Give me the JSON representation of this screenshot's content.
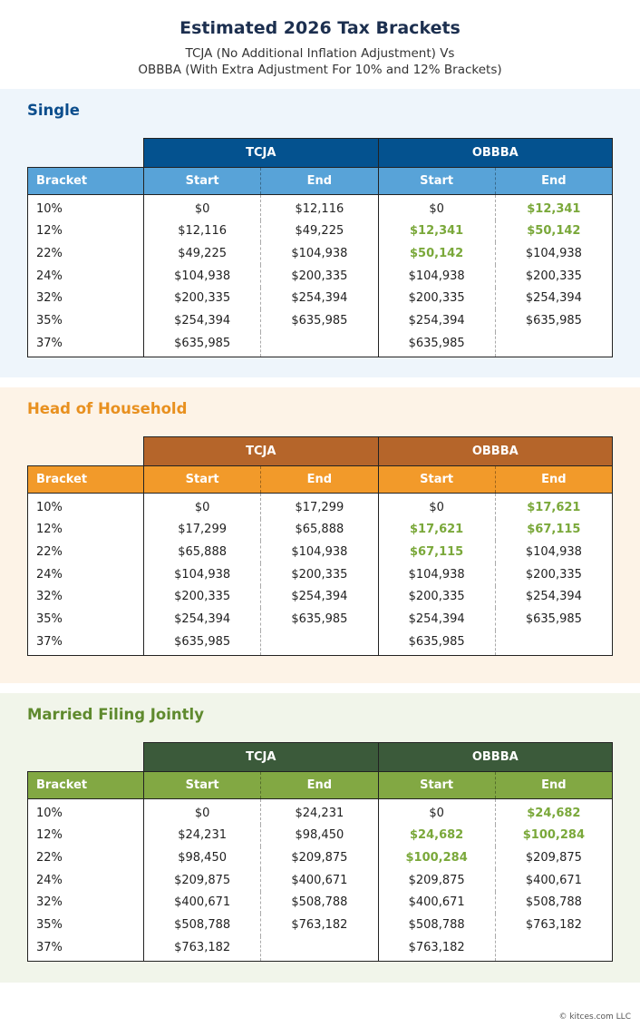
{
  "title": "Estimated 2026 Tax Brackets",
  "subtitle_line1": "TCJA (No Additional Inflation Adjustment) Vs",
  "subtitle_line2": "OBBBA (With Extra Adjustment For 10% and 12% Brackets)",
  "column_groups": [
    "TCJA",
    "OBBBA"
  ],
  "column_headers": {
    "bracket": "Bracket",
    "start": "Start",
    "end": "End"
  },
  "highlight_color": "#7aa83a",
  "sections": [
    {
      "name": "Single",
      "colors": {
        "background": "#eef5fb",
        "heading": "#0b4d8c",
        "group_header": "#04528f",
        "sub_header": "#58a3d8"
      },
      "rows": [
        {
          "bracket": "10%",
          "tcja_start": "$0",
          "tcja_end": "$12,116",
          "obbba_start": "$0",
          "obbba_end": "$12,341",
          "highlight": [
            "obbba_end"
          ]
        },
        {
          "bracket": "12%",
          "tcja_start": "$12,116",
          "tcja_end": "$49,225",
          "obbba_start": "$12,341",
          "obbba_end": "$50,142",
          "highlight": [
            "obbba_start",
            "obbba_end"
          ]
        },
        {
          "bracket": "22%",
          "tcja_start": "$49,225",
          "tcja_end": "$104,938",
          "obbba_start": "$50,142",
          "obbba_end": "$104,938",
          "highlight": [
            "obbba_start"
          ]
        },
        {
          "bracket": "24%",
          "tcja_start": "$104,938",
          "tcja_end": "$200,335",
          "obbba_start": "$104,938",
          "obbba_end": "$200,335",
          "highlight": []
        },
        {
          "bracket": "32%",
          "tcja_start": "$200,335",
          "tcja_end": "$254,394",
          "obbba_start": "$200,335",
          "obbba_end": "$254,394",
          "highlight": []
        },
        {
          "bracket": "35%",
          "tcja_start": "$254,394",
          "tcja_end": "$635,985",
          "obbba_start": "$254,394",
          "obbba_end": "$635,985",
          "highlight": []
        },
        {
          "bracket": "37%",
          "tcja_start": "$635,985",
          "tcja_end": "",
          "obbba_start": "$635,985",
          "obbba_end": "",
          "highlight": []
        }
      ]
    },
    {
      "name": "Head of Household",
      "colors": {
        "background": "#fdf3e7",
        "heading": "#e8901f",
        "group_header": "#b5652a",
        "sub_header": "#f29a2a"
      },
      "rows": [
        {
          "bracket": "10%",
          "tcja_start": "$0",
          "tcja_end": "$17,299",
          "obbba_start": "$0",
          "obbba_end": "$17,621",
          "highlight": [
            "obbba_end"
          ]
        },
        {
          "bracket": "12%",
          "tcja_start": "$17,299",
          "tcja_end": "$65,888",
          "obbba_start": "$17,621",
          "obbba_end": "$67,115",
          "highlight": [
            "obbba_start",
            "obbba_end"
          ]
        },
        {
          "bracket": "22%",
          "tcja_start": "$65,888",
          "tcja_end": "$104,938",
          "obbba_start": "$67,115",
          "obbba_end": "$104,938",
          "highlight": [
            "obbba_start"
          ]
        },
        {
          "bracket": "24%",
          "tcja_start": "$104,938",
          "tcja_end": "$200,335",
          "obbba_start": "$104,938",
          "obbba_end": "$200,335",
          "highlight": []
        },
        {
          "bracket": "32%",
          "tcja_start": "$200,335",
          "tcja_end": "$254,394",
          "obbba_start": "$200,335",
          "obbba_end": "$254,394",
          "highlight": []
        },
        {
          "bracket": "35%",
          "tcja_start": "$254,394",
          "tcja_end": "$635,985",
          "obbba_start": "$254,394",
          "obbba_end": "$635,985",
          "highlight": []
        },
        {
          "bracket": "37%",
          "tcja_start": "$635,985",
          "tcja_end": "",
          "obbba_start": "$635,985",
          "obbba_end": "",
          "highlight": []
        }
      ]
    },
    {
      "name": "Married Filing Jointly",
      "colors": {
        "background": "#f1f5ea",
        "heading": "#5f8a2e",
        "group_header": "#3b5a3a",
        "sub_header": "#82a843"
      },
      "rows": [
        {
          "bracket": "10%",
          "tcja_start": "$0",
          "tcja_end": "$24,231",
          "obbba_start": "$0",
          "obbba_end": "$24,682",
          "highlight": [
            "obbba_end"
          ]
        },
        {
          "bracket": "12%",
          "tcja_start": "$24,231",
          "tcja_end": "$98,450",
          "obbba_start": "$24,682",
          "obbba_end": "$100,284",
          "highlight": [
            "obbba_start",
            "obbba_end"
          ]
        },
        {
          "bracket": "22%",
          "tcja_start": "$98,450",
          "tcja_end": "$209,875",
          "obbba_start": "$100,284",
          "obbba_end": "$209,875",
          "highlight": [
            "obbba_start"
          ]
        },
        {
          "bracket": "24%",
          "tcja_start": "$209,875",
          "tcja_end": "$400,671",
          "obbba_start": "$209,875",
          "obbba_end": "$400,671",
          "highlight": []
        },
        {
          "bracket": "32%",
          "tcja_start": "$400,671",
          "tcja_end": "$508,788",
          "obbba_start": "$400,671",
          "obbba_end": "$508,788",
          "highlight": []
        },
        {
          "bracket": "35%",
          "tcja_start": "$508,788",
          "tcja_end": "$763,182",
          "obbba_start": "$508,788",
          "obbba_end": "$763,182",
          "highlight": []
        },
        {
          "bracket": "37%",
          "tcja_start": "$763,182",
          "tcja_end": "",
          "obbba_start": "$763,182",
          "obbba_end": "",
          "highlight": []
        }
      ]
    }
  ],
  "footer": "© kitces.com LLC"
}
